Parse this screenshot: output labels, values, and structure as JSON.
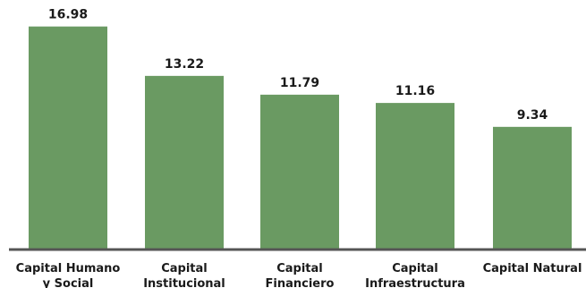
{
  "chart_data": {
    "type": "bar",
    "categories": [
      [
        "Capital Humano",
        "y Social"
      ],
      [
        "Capital",
        "Institucional"
      ],
      [
        "Capital",
        "Financiero"
      ],
      [
        "Capital",
        "Infraestructura"
      ],
      [
        "Capital Natural"
      ]
    ],
    "values": [
      16.98,
      13.22,
      11.79,
      11.16,
      9.34
    ],
    "value_labels": [
      "16.98",
      "13.22",
      "11.79",
      "11.16",
      "9.34"
    ],
    "title": "",
    "xlabel": "",
    "ylabel": "",
    "ylim": [
      0,
      17.5
    ],
    "grid": false,
    "legend": "none",
    "colors": {
      "bar": "#6a9a62",
      "axis": "#555555",
      "text": "#1a1a1a"
    }
  }
}
